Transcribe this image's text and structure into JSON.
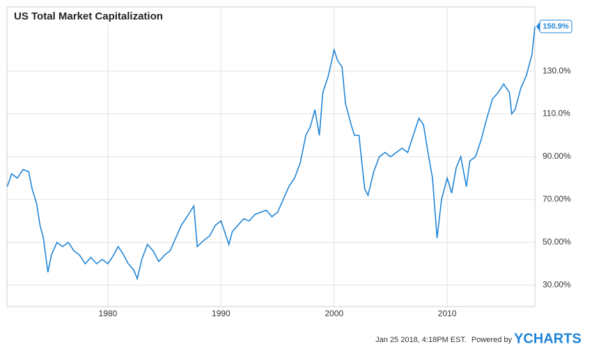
{
  "chart_data": {
    "type": "line",
    "title": "US Total Market Capitalization",
    "x": [
      1971.1,
      1971.5,
      1972,
      1972.5,
      1973,
      1973.3,
      1973.7,
      1974,
      1974.3,
      1974.7,
      1975,
      1975.5,
      1976,
      1976.5,
      1977,
      1977.5,
      1978,
      1978.5,
      1979,
      1979.5,
      1980,
      1980.5,
      1980.9,
      1981.3,
      1981.8,
      1982.3,
      1982.6,
      1983,
      1983.5,
      1984,
      1984.5,
      1985,
      1985.5,
      1986,
      1986.5,
      1987,
      1987.6,
      1987.9,
      1988.5,
      1989,
      1989.5,
      1990,
      1990.7,
      1991,
      1991.5,
      1992,
      1992.5,
      1993,
      1993.5,
      1994,
      1994.5,
      1995,
      1995.5,
      1996,
      1996.5,
      1997,
      1997.5,
      1997.9,
      1998.3,
      1998.7,
      1999,
      1999.5,
      2000,
      2000.3,
      2000.7,
      2001,
      2001.5,
      2001.8,
      2002.2,
      2002.7,
      2003,
      2003.5,
      2004,
      2004.5,
      2005,
      2005.5,
      2006,
      2006.5,
      2007,
      2007.5,
      2007.9,
      2008.3,
      2008.7,
      2009.1,
      2009.5,
      2010,
      2010.4,
      2010.8,
      2011.2,
      2011.7,
      2012,
      2012.5,
      2013,
      2013.5,
      2014,
      2014.5,
      2015,
      2015.5,
      2015.7,
      2016,
      2016.5,
      2017,
      2017.5,
      2017.75
    ],
    "series": [
      {
        "name": "US Total Market Capitalization",
        "color": "#1f84d6",
        "values": [
          76,
          82,
          80,
          84,
          83,
          75,
          68,
          58,
          52,
          36,
          44,
          50,
          48,
          50,
          46,
          44,
          40,
          43,
          40,
          42,
          40,
          44,
          48,
          45,
          40,
          37,
          33,
          42,
          49,
          46,
          41,
          44,
          46,
          52,
          58,
          62,
          67,
          48,
          51,
          53,
          58,
          60,
          49,
          55,
          58,
          61,
          60,
          63,
          64,
          65,
          62,
          64,
          70,
          76,
          80,
          87,
          100,
          104,
          112,
          100,
          120,
          128,
          140,
          135,
          132,
          115,
          105,
          100,
          100,
          75,
          72,
          83,
          90,
          92,
          90,
          92,
          94,
          92,
          100,
          108,
          105,
          92,
          80,
          52,
          70,
          80,
          73,
          85,
          90,
          76,
          88,
          90,
          98,
          108,
          117,
          120,
          124,
          120,
          110,
          112,
          122,
          128,
          138,
          150.9
        ]
      }
    ],
    "end_label": {
      "value": 150.9,
      "label": "150.9%"
    },
    "xlim": [
      1971.08,
      2017.75
    ],
    "xticks": [
      1980,
      1990,
      2000,
      2010
    ],
    "ylim": [
      20,
      160
    ],
    "yticks": [
      {
        "value": 30,
        "label": "30.00%"
      },
      {
        "value": 50,
        "label": "50.00%"
      },
      {
        "value": 70,
        "label": "70.00%"
      },
      {
        "value": 90,
        "label": "90.00%"
      },
      {
        "value": 110,
        "label": "110.0%"
      },
      {
        "value": 130,
        "label": "130.0%"
      }
    ],
    "grid": true,
    "footer": {
      "timestamp": "Jan 25 2018, 4:18PM EST.",
      "powered": "Powered by",
      "brand": "YCHARTS"
    }
  }
}
